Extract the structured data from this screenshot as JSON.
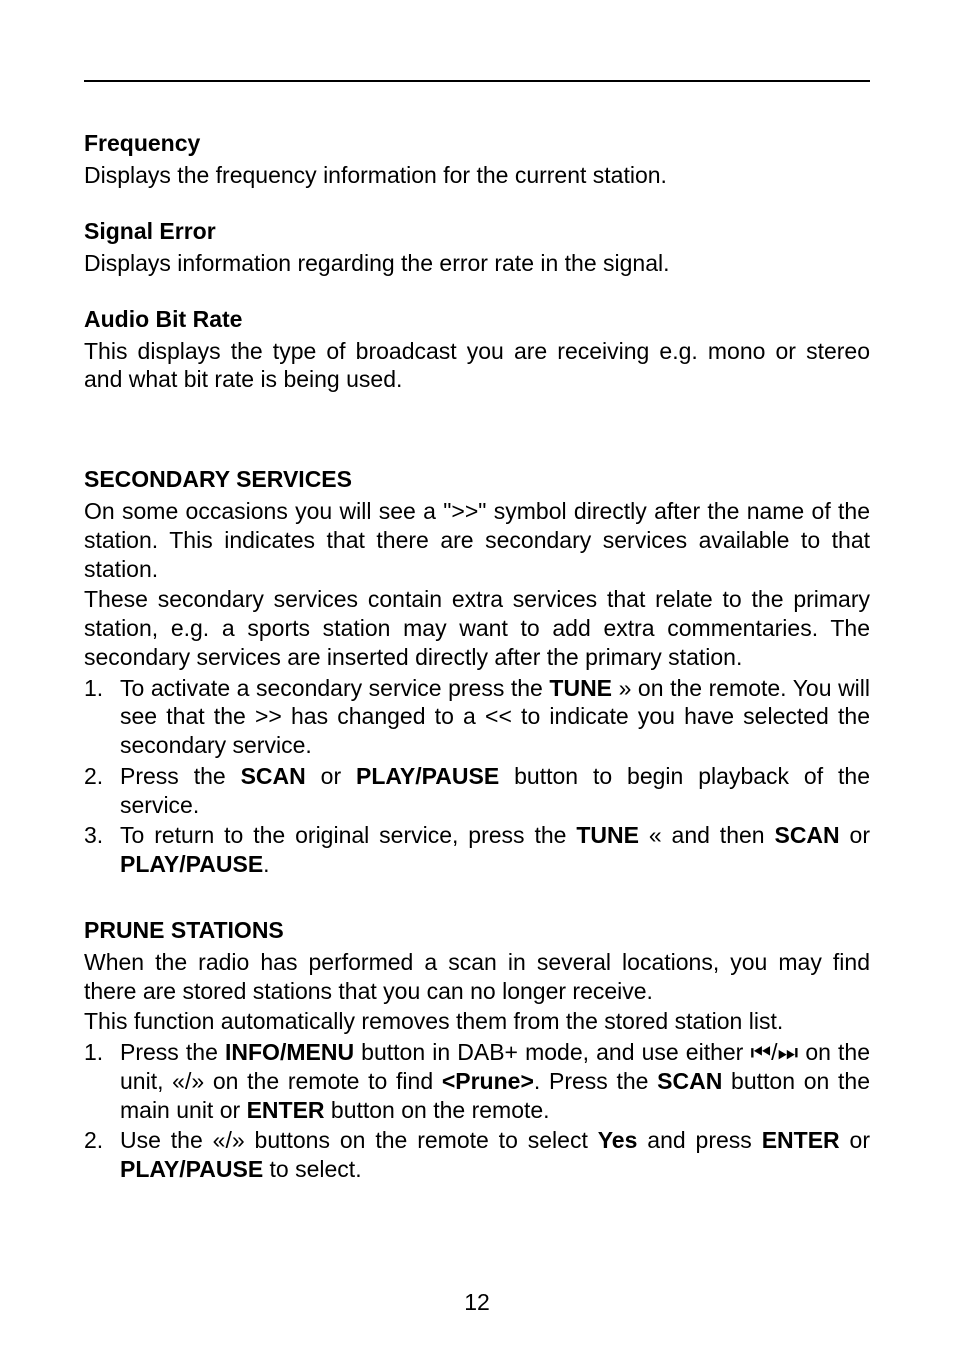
{
  "sections": {
    "frequency": {
      "heading": "Frequency",
      "text": "Displays the frequency information for the current station."
    },
    "signal_error": {
      "heading": "Signal Error",
      "text": "Displays information regarding the error rate in the signal."
    },
    "audio_bit_rate": {
      "heading": "Audio Bit Rate",
      "text": "This displays the type of broadcast you are receiving e.g. mono or stereo and what bit rate is being used."
    },
    "secondary": {
      "heading": "SECONDARY SERVICES",
      "para1": "On some occasions you will see a \">>\" symbol directly after the name of the station. This indicates that there are secondary services available to that station.",
      "para2": "These secondary services contain extra services that relate to the primary station, e.g. a sports station may want to add extra commentaries. The secondary services are inserted directly after the primary station.",
      "step1_a": "To activate a secondary service press the ",
      "step1_tune": "TUNE",
      "step1_b": " » on the remote. You will see that the >> has changed to a << to indicate you have selected the secondary service.",
      "step2_a": "Press the ",
      "step2_scan": "SCAN",
      "step2_or": " or ",
      "step2_playpause": "PLAY/PAUSE",
      "step2_b": " button to begin playback of the service.",
      "step3_a": "To return to the original service, press the ",
      "step3_tune": "TUNE",
      "step3_b": " « and then ",
      "step3_scan": "SCAN",
      "step3_or": " or ",
      "step3_playpause": "PLAY/PAUSE",
      "step3_c": "."
    },
    "prune": {
      "heading": "PRUNE STATIONS",
      "para1": "When the radio has performed a scan in several locations, you may find there are stored stations that you can no longer receive.",
      "para2": "This function automatically removes them from the stored station list.",
      "step1_a": "Press the ",
      "step1_info": "INFO/MENU",
      "step1_b": " button in DAB+ mode, and use either ⏮/⏭ on the unit, «/» on the remote to find ",
      "step1_prune": "<Prune>",
      "step1_c": ". Press the ",
      "step1_scan": "SCAN",
      "step1_d": " button on the main unit or ",
      "step1_enter": "ENTER",
      "step1_e": " button on the remote.",
      "step2_a": "Use the «/» buttons on the remote to select ",
      "step2_yes": "Yes",
      "step2_b": " and press ",
      "step2_enter": "ENTER",
      "step2_or": " or ",
      "step2_playpause": "PLAY/PAUSE",
      "step2_c": " to select."
    }
  },
  "page_number": "12"
}
